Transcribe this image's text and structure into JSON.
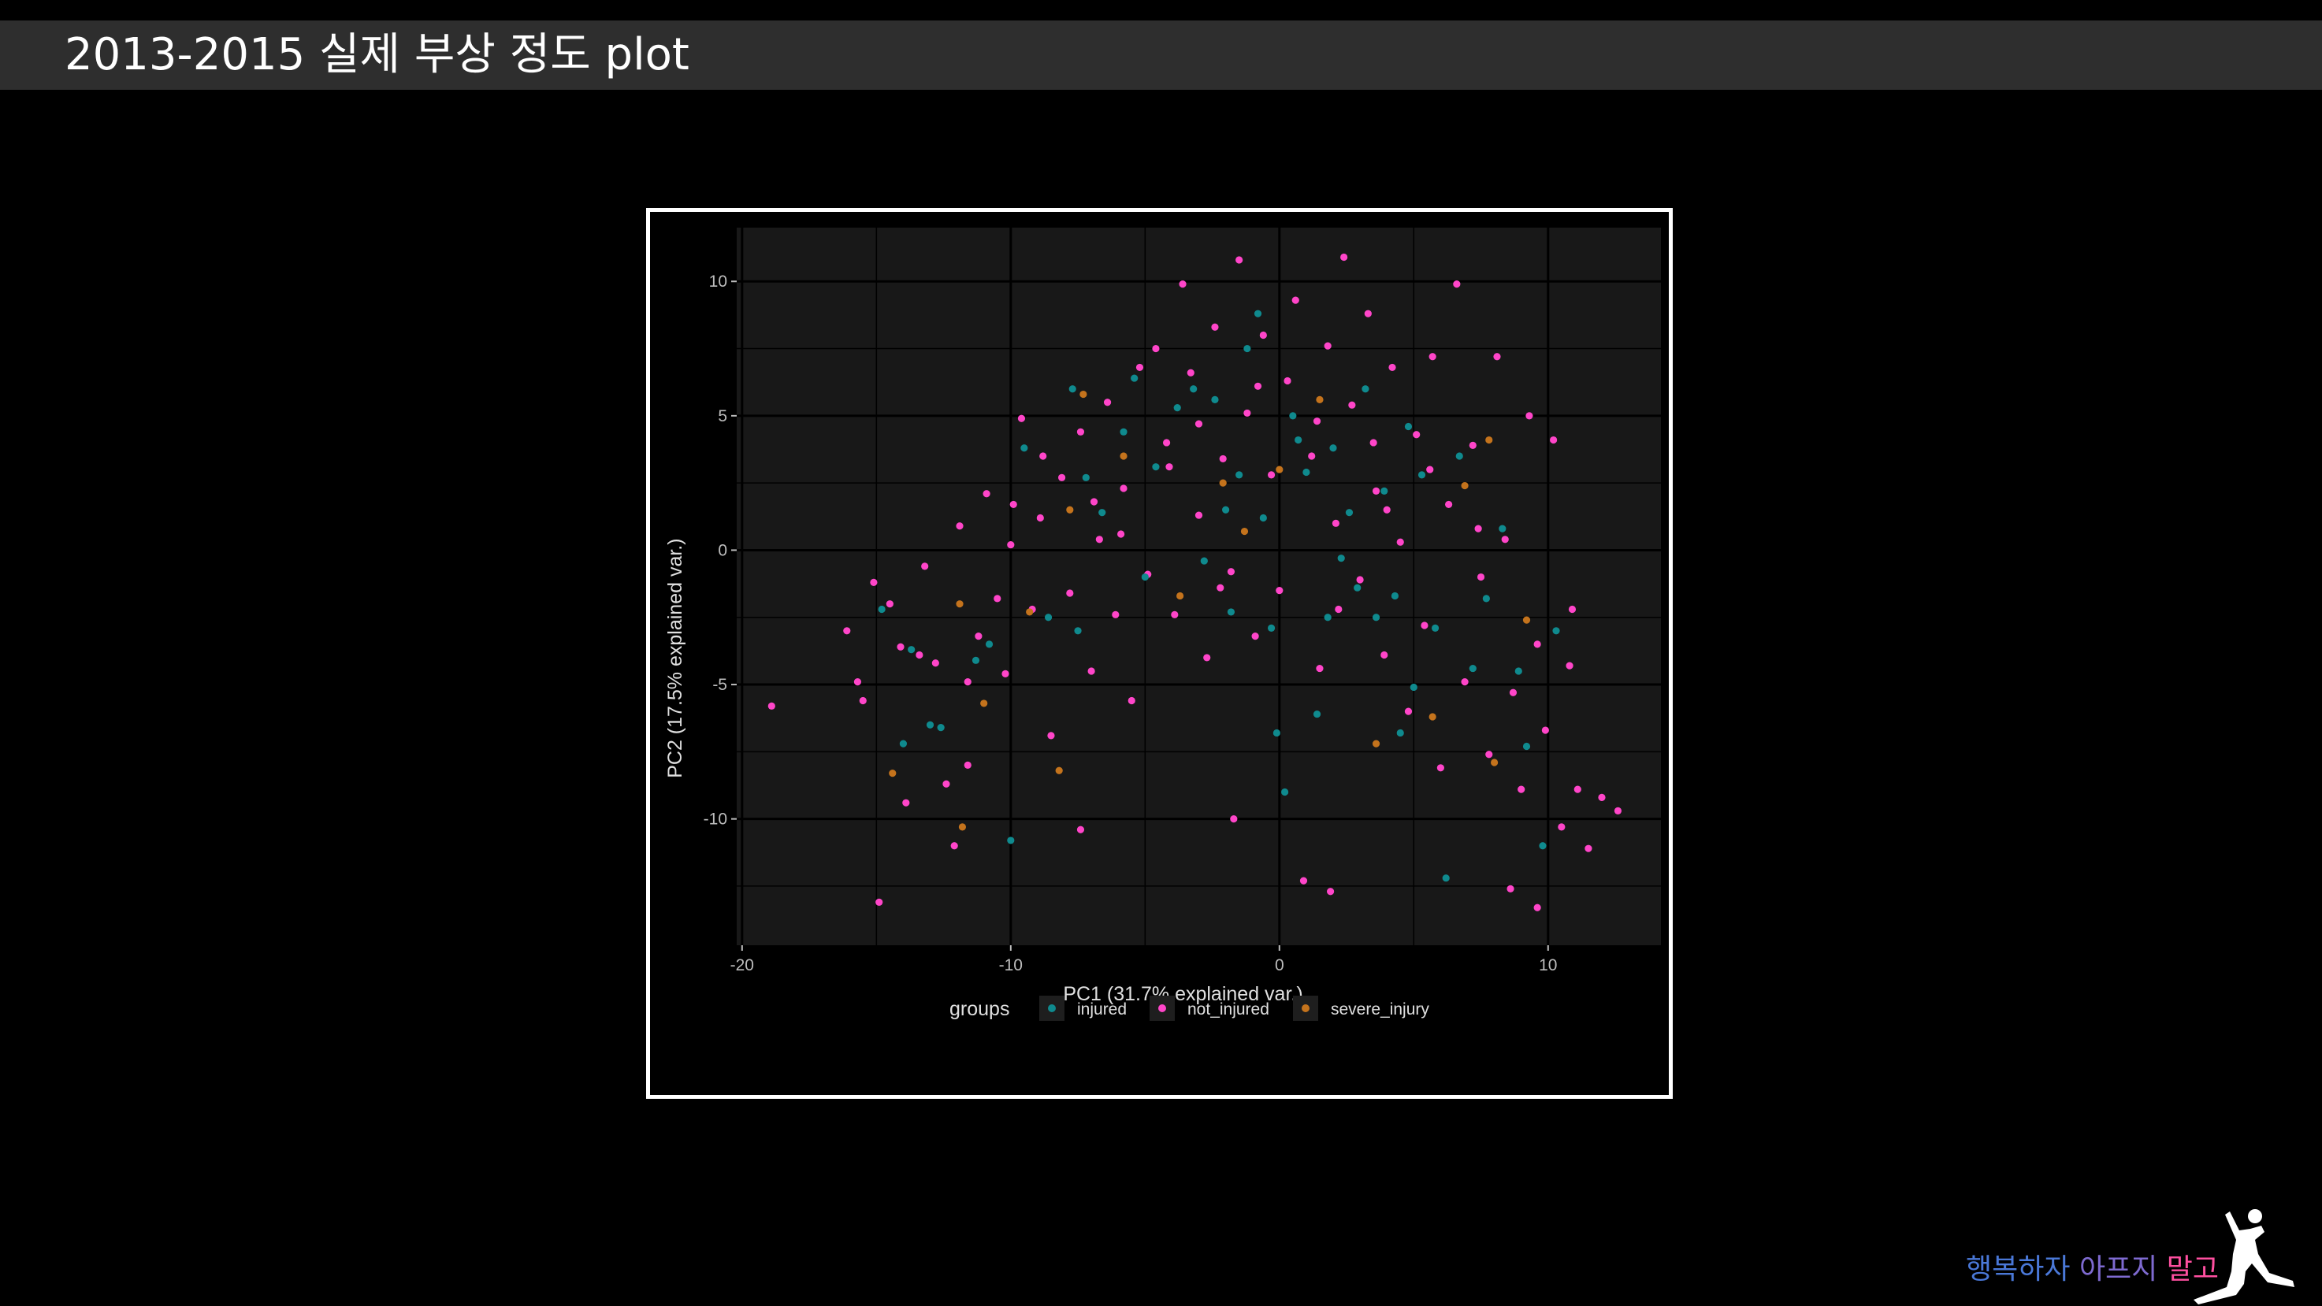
{
  "slide": {
    "title": "2013-2015 실제 부상 정도 plot",
    "watermark": "행복하자 아프지 말고"
  },
  "colors": {
    "panel": "#181818",
    "grid": "#000000",
    "tick_text": "#bdbdbd",
    "label_text": "#e0e0e0",
    "injured": "#0f8a8e",
    "not_injured": "#ff45c9",
    "severe_injury": "#c4731c",
    "watermark": [
      "#4a78d8",
      "#7e6ad0",
      "#ff4fa0"
    ]
  },
  "chart_data": {
    "type": "scatter",
    "title": "",
    "xlabel": "PC1 (31.7% explained var.)",
    "ylabel": "PC2 (17.5% explained var.)",
    "xlim": [
      -20.2,
      14.2
    ],
    "ylim": [
      -14.7,
      12.0
    ],
    "x_ticks": [
      -20,
      -10,
      0,
      10
    ],
    "x_tick_labels": [
      "-20",
      "-10",
      "0",
      "10"
    ],
    "y_ticks": [
      -10,
      -5,
      0,
      5,
      10
    ],
    "y_tick_labels": [
      "-10",
      "-5",
      "0",
      "5",
      "10"
    ],
    "minor_x": [
      -15,
      -5,
      5
    ],
    "minor_y": [
      -12.5,
      -7.5,
      -2.5,
      2.5,
      7.5
    ],
    "grid": true,
    "legend": {
      "title": "groups",
      "position": "bottom"
    },
    "series": [
      {
        "name": "injured",
        "color": "#0f8a8e",
        "points": [
          [
            -14.8,
            -2.2
          ],
          [
            -14.0,
            -7.2
          ],
          [
            -13.7,
            -3.7
          ],
          [
            -13.0,
            -6.5
          ],
          [
            -12.6,
            -6.6
          ],
          [
            -11.3,
            -4.1
          ],
          [
            -10.8,
            -3.5
          ],
          [
            -10.0,
            -10.8
          ],
          [
            -9.5,
            3.8
          ],
          [
            -8.6,
            -2.5
          ],
          [
            -7.7,
            6.0
          ],
          [
            -7.5,
            -3.0
          ],
          [
            -7.2,
            2.7
          ],
          [
            -6.6,
            1.4
          ],
          [
            -5.8,
            4.4
          ],
          [
            -5.4,
            6.4
          ],
          [
            -4.6,
            3.1
          ],
          [
            -3.8,
            5.3
          ],
          [
            -3.2,
            6.0
          ],
          [
            -2.8,
            -0.4
          ],
          [
            -2.4,
            5.6
          ],
          [
            -1.8,
            -2.3
          ],
          [
            -1.5,
            2.8
          ],
          [
            -1.2,
            7.5
          ],
          [
            -0.8,
            8.8
          ],
          [
            -0.6,
            1.2
          ],
          [
            -0.3,
            -2.9
          ],
          [
            -0.1,
            -6.8
          ],
          [
            0.2,
            -9.0
          ],
          [
            0.7,
            4.1
          ],
          [
            1.0,
            2.9
          ],
          [
            1.4,
            -6.1
          ],
          [
            1.8,
            -2.5
          ],
          [
            2.0,
            3.8
          ],
          [
            2.3,
            -0.3
          ],
          [
            2.6,
            1.4
          ],
          [
            2.9,
            -1.4
          ],
          [
            3.2,
            6.0
          ],
          [
            3.6,
            -2.5
          ],
          [
            3.9,
            2.2
          ],
          [
            4.3,
            -1.7
          ],
          [
            4.5,
            -6.8
          ],
          [
            5.0,
            -5.1
          ],
          [
            5.3,
            2.8
          ],
          [
            5.8,
            -2.9
          ],
          [
            6.2,
            -12.2
          ],
          [
            6.7,
            3.5
          ],
          [
            7.2,
            -4.4
          ],
          [
            7.7,
            -1.8
          ],
          [
            8.3,
            0.8
          ],
          [
            8.9,
            -4.5
          ],
          [
            9.2,
            -7.3
          ],
          [
            9.8,
            -11.0
          ],
          [
            10.3,
            -3.0
          ],
          [
            -2.0,
            1.5
          ],
          [
            0.5,
            5.0
          ],
          [
            4.8,
            4.6
          ],
          [
            -5.0,
            -1.0
          ]
        ]
      },
      {
        "name": "not_injured",
        "color": "#ff45c9",
        "points": [
          [
            -18.9,
            -5.8
          ],
          [
            -16.1,
            -3.0
          ],
          [
            -15.7,
            -4.9
          ],
          [
            -15.5,
            -5.6
          ],
          [
            -15.1,
            -1.2
          ],
          [
            -14.9,
            -13.1
          ],
          [
            -14.5,
            -2.0
          ],
          [
            -14.1,
            -3.6
          ],
          [
            -13.9,
            -9.4
          ],
          [
            -13.4,
            -3.9
          ],
          [
            -13.2,
            -0.6
          ],
          [
            -12.8,
            -4.2
          ],
          [
            -12.4,
            -8.7
          ],
          [
            -12.1,
            -11.0
          ],
          [
            -11.9,
            0.9
          ],
          [
            -11.6,
            -8.0
          ],
          [
            -11.2,
            -3.2
          ],
          [
            -10.9,
            2.1
          ],
          [
            -10.5,
            -1.8
          ],
          [
            -10.2,
            -4.6
          ],
          [
            -9.9,
            1.7
          ],
          [
            -9.6,
            4.9
          ],
          [
            -9.2,
            -2.2
          ],
          [
            -8.8,
            3.5
          ],
          [
            -8.5,
            -6.9
          ],
          [
            -8.1,
            2.7
          ],
          [
            -7.8,
            -1.6
          ],
          [
            -7.4,
            4.4
          ],
          [
            -7.0,
            -4.5
          ],
          [
            -6.7,
            0.4
          ],
          [
            -6.4,
            5.5
          ],
          [
            -6.1,
            -2.4
          ],
          [
            -5.8,
            2.3
          ],
          [
            -5.5,
            -5.6
          ],
          [
            -5.2,
            6.8
          ],
          [
            -4.9,
            -0.9
          ],
          [
            -4.6,
            7.5
          ],
          [
            -4.2,
            4.0
          ],
          [
            -3.9,
            -2.4
          ],
          [
            -3.6,
            9.9
          ],
          [
            -3.3,
            6.6
          ],
          [
            -3.0,
            1.3
          ],
          [
            -2.7,
            -4.0
          ],
          [
            -2.4,
            8.3
          ],
          [
            -2.1,
            3.4
          ],
          [
            -1.8,
            -0.8
          ],
          [
            -1.5,
            10.8
          ],
          [
            -1.2,
            5.1
          ],
          [
            -0.9,
            -3.2
          ],
          [
            -0.6,
            8.0
          ],
          [
            -0.3,
            2.8
          ],
          [
            0.0,
            -1.5
          ],
          [
            0.3,
            6.3
          ],
          [
            0.6,
            9.3
          ],
          [
            0.9,
            -12.3
          ],
          [
            1.2,
            3.5
          ],
          [
            1.5,
            -4.4
          ],
          [
            1.8,
            7.6
          ],
          [
            2.1,
            1.0
          ],
          [
            2.4,
            10.9
          ],
          [
            2.7,
            5.4
          ],
          [
            3.0,
            -1.1
          ],
          [
            3.3,
            8.8
          ],
          [
            3.6,
            2.2
          ],
          [
            3.9,
            -3.9
          ],
          [
            4.2,
            6.8
          ],
          [
            4.5,
            0.3
          ],
          [
            4.8,
            -6.0
          ],
          [
            5.1,
            4.3
          ],
          [
            5.4,
            -2.8
          ],
          [
            5.7,
            7.2
          ],
          [
            6.0,
            -8.1
          ],
          [
            6.3,
            1.7
          ],
          [
            6.6,
            9.9
          ],
          [
            6.9,
            -4.9
          ],
          [
            7.2,
            3.9
          ],
          [
            7.5,
            -1.0
          ],
          [
            7.8,
            -7.6
          ],
          [
            8.1,
            7.2
          ],
          [
            8.4,
            0.4
          ],
          [
            8.7,
            -5.3
          ],
          [
            9.0,
            -8.9
          ],
          [
            9.3,
            5.0
          ],
          [
            9.6,
            -3.5
          ],
          [
            9.9,
            -6.7
          ],
          [
            10.2,
            4.1
          ],
          [
            10.5,
            -10.3
          ],
          [
            10.8,
            -4.3
          ],
          [
            11.1,
            -8.9
          ],
          [
            11.5,
            -11.1
          ],
          [
            12.0,
            -9.2
          ],
          [
            12.6,
            -9.7
          ],
          [
            10.9,
            -2.2
          ],
          [
            9.6,
            -13.3
          ],
          [
            8.6,
            -12.6
          ],
          [
            -7.4,
            -10.4
          ],
          [
            -1.7,
            -10.0
          ],
          [
            1.9,
            -12.7
          ],
          [
            -11.6,
            -4.9
          ],
          [
            -10.0,
            0.2
          ],
          [
            -8.9,
            1.2
          ],
          [
            -6.9,
            1.8
          ],
          [
            -3.0,
            4.7
          ],
          [
            -0.8,
            6.1
          ],
          [
            1.4,
            4.8
          ],
          [
            3.5,
            4.0
          ],
          [
            5.6,
            3.0
          ],
          [
            7.4,
            0.8
          ],
          [
            4.0,
            1.5
          ],
          [
            2.2,
            -2.2
          ],
          [
            -4.1,
            3.1
          ],
          [
            -5.9,
            0.6
          ],
          [
            -2.2,
            -1.4
          ]
        ]
      },
      {
        "name": "severe_injury",
        "color": "#c4731c",
        "points": [
          [
            -14.4,
            -8.3
          ],
          [
            -11.8,
            -10.3
          ],
          [
            -11.9,
            -2.0
          ],
          [
            -11.0,
            -5.7
          ],
          [
            -9.3,
            -2.3
          ],
          [
            -8.2,
            -8.2
          ],
          [
            -7.8,
            1.5
          ],
          [
            -7.3,
            5.8
          ],
          [
            -5.8,
            3.5
          ],
          [
            -3.7,
            -1.7
          ],
          [
            -1.3,
            0.7
          ],
          [
            0.0,
            3.0
          ],
          [
            1.5,
            5.6
          ],
          [
            3.6,
            -7.2
          ],
          [
            5.7,
            -6.2
          ],
          [
            6.9,
            2.4
          ],
          [
            7.8,
            4.1
          ],
          [
            8.0,
            -7.9
          ],
          [
            9.2,
            -2.6
          ],
          [
            -2.1,
            2.5
          ]
        ]
      }
    ]
  }
}
